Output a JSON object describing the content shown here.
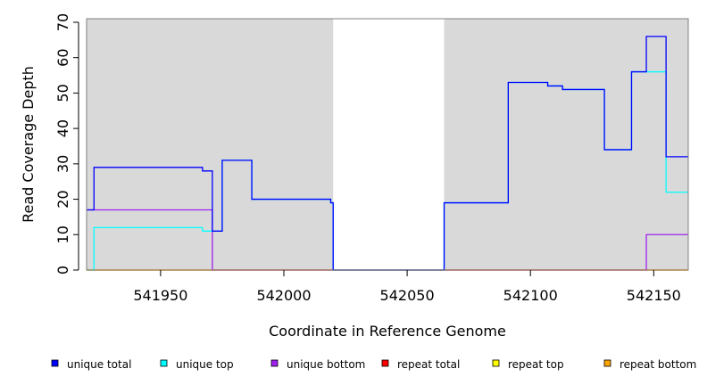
{
  "chart_data": {
    "type": "line",
    "title": "",
    "xlabel": "Coordinate in Reference Genome",
    "ylabel": "Read Coverage Depth",
    "xlim": [
      541920,
      542164
    ],
    "ylim": [
      0,
      71
    ],
    "x_ticks": [
      541950,
      542000,
      542050,
      542100,
      542150
    ],
    "x_tick_labels": [
      "541950",
      "542000",
      "542050",
      "542100",
      "542150"
    ],
    "y_ticks": [
      0,
      10,
      20,
      30,
      40,
      50,
      60,
      70
    ],
    "y_tick_labels": [
      "0",
      "10",
      "20",
      "30",
      "40",
      "50",
      "60",
      "70"
    ],
    "grid": false,
    "legend_position": "bottom",
    "shaded_regions": [
      {
        "x0": 541920,
        "x1": 542020,
        "color": "#d9d9d9"
      },
      {
        "x0": 542065,
        "x1": 542164,
        "color": "#d9d9d9"
      }
    ],
    "series": [
      {
        "name": "unique total",
        "color": "#0000ff",
        "x": [
          541920,
          541923,
          541923,
          541967,
          541967,
          541969,
          541969,
          541971,
          541971,
          541975,
          541975,
          541987,
          541987,
          542019,
          542019,
          542020,
          542020,
          542065,
          542065,
          542091,
          542091,
          542107,
          542107,
          542113,
          542113,
          542130,
          542130,
          542141,
          542141,
          542147,
          542147,
          542155,
          542155,
          542164
        ],
        "y": [
          17,
          17,
          29,
          29,
          28,
          28,
          28,
          28,
          11,
          11,
          31,
          31,
          20,
          20,
          19,
          19,
          0,
          0,
          19,
          19,
          53,
          53,
          52,
          52,
          51,
          51,
          34,
          34,
          56,
          56,
          66,
          66,
          32,
          32
        ]
      },
      {
        "name": "unique top",
        "color": "#00ffff",
        "x": [
          541920,
          541923,
          541923,
          541967,
          541967,
          541971,
          541971,
          541975,
          541975,
          541987,
          541987,
          542019,
          542019,
          542020,
          542020,
          542065,
          542065,
          542091,
          542091,
          542107,
          542107,
          542113,
          542113,
          542130,
          542130,
          542141,
          542141,
          542147,
          542147,
          542155,
          542155,
          542164
        ],
        "y": [
          0,
          0,
          12,
          12,
          11,
          11,
          11,
          11,
          31,
          31,
          20,
          20,
          19,
          19,
          0,
          0,
          19,
          19,
          53,
          53,
          52,
          52,
          51,
          51,
          34,
          34,
          56,
          56,
          56,
          56,
          22,
          22
        ]
      },
      {
        "name": "unique bottom",
        "color": "#a020f0",
        "x": [
          541920,
          541971,
          541971,
          542147,
          542147,
          542164
        ],
        "y": [
          17,
          17,
          0,
          0,
          10,
          10
        ]
      },
      {
        "name": "repeat total",
        "color": "#ff0000",
        "x": [
          541920,
          542164
        ],
        "y": [
          0,
          0
        ]
      },
      {
        "name": "repeat top",
        "color": "#ffff00",
        "x": [
          541920,
          542164
        ],
        "y": [
          0,
          0
        ]
      },
      {
        "name": "repeat bottom",
        "color": "#ffa500",
        "x": [
          541920,
          542164
        ],
        "y": [
          0,
          0
        ]
      }
    ]
  },
  "legend": [
    {
      "label": "unique total",
      "color": "#0000ff"
    },
    {
      "label": "unique top",
      "color": "#00ffff"
    },
    {
      "label": "unique bottom",
      "color": "#a020f0"
    },
    {
      "label": "repeat total",
      "color": "#ff0000"
    },
    {
      "label": "repeat top",
      "color": "#ffff00"
    },
    {
      "label": "repeat bottom",
      "color": "#ffa500"
    }
  ]
}
